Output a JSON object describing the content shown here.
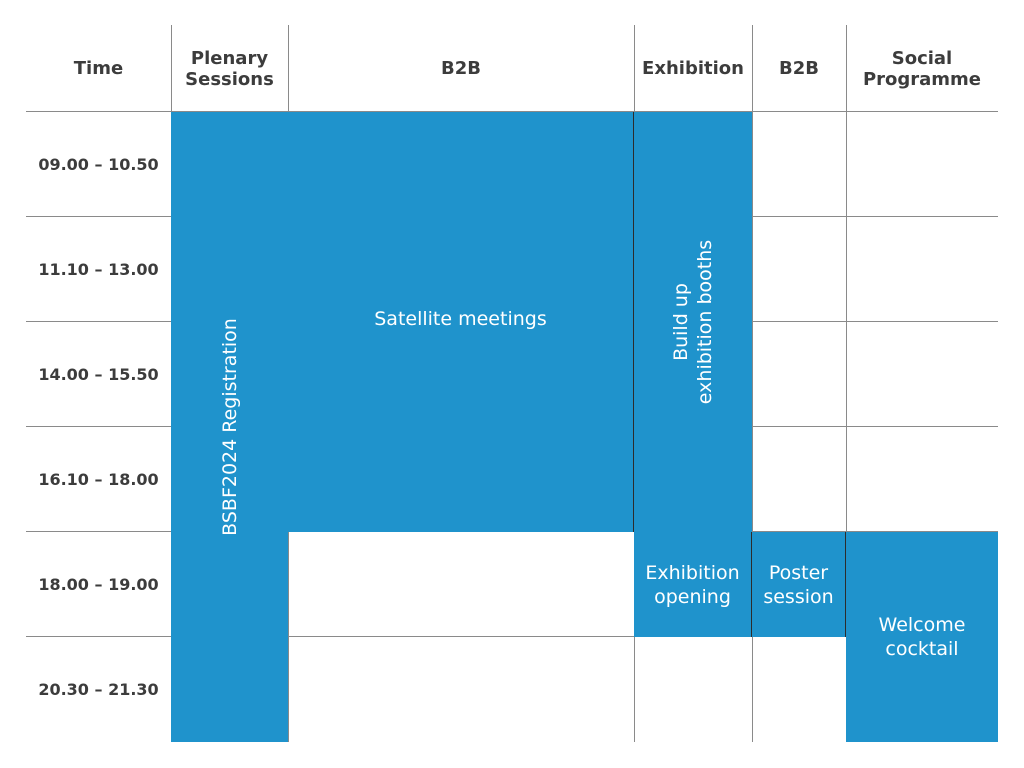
{
  "colors": {
    "block": "#1f93cc",
    "grid_line": "#8a8a8a",
    "text_dark": "#3c3c3c"
  },
  "headers": {
    "time": "Time",
    "plenary_line1": "Plenary",
    "plenary_line2": "Sessions",
    "b2b_a": "B2B",
    "exhibition": "Exhibition",
    "b2b_b": "B2B",
    "social_line1": "Social",
    "social_line2": "Programme"
  },
  "time_slots": [
    "09.00 – 10.50",
    "11.10 – 13.00",
    "14.00 – 15.50",
    "16.10 – 18.00",
    "18.00 – 19.00",
    "20.30 – 21.30"
  ],
  "events": {
    "registration": "BSBF2024 Registration",
    "satellite": "Satellite meetings",
    "build_line1": "Build up",
    "build_line2": "exhibition booths",
    "exhibition_opening_line1": "Exhibition",
    "exhibition_opening_line2": "opening",
    "poster_line1": "Poster",
    "poster_line2": "session",
    "welcome_line1": "Welcome",
    "welcome_line2": "cocktail"
  }
}
